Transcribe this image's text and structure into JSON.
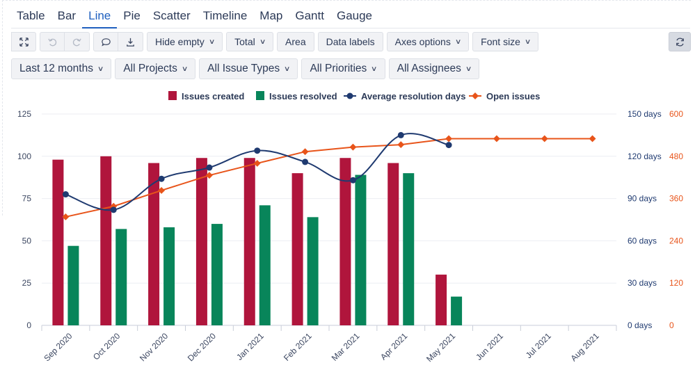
{
  "tabs": [
    "Table",
    "Bar",
    "Line",
    "Pie",
    "Scatter",
    "Timeline",
    "Map",
    "Gantt",
    "Gauge"
  ],
  "active_tab": "Line",
  "toolbar": {
    "icons": [
      "expand-icon",
      "undo-icon",
      "redo-icon",
      "comment-icon",
      "download-icon",
      "refresh-icon"
    ],
    "buttons": [
      {
        "label": "Hide empty",
        "dropdown": true
      },
      {
        "label": "Total",
        "dropdown": true
      },
      {
        "label": "Area",
        "dropdown": false
      },
      {
        "label": "Data labels",
        "dropdown": false
      },
      {
        "label": "Axes options",
        "dropdown": true
      },
      {
        "label": "Font size",
        "dropdown": true
      }
    ]
  },
  "filters": [
    "Last 12 months",
    "All Projects",
    "All Issue Types",
    "All Priorities",
    "All Assignees"
  ],
  "colors": {
    "created": "#b0153c",
    "resolved": "#08855a",
    "avg": "#1f3a70",
    "open": "#e8541a",
    "accent": "#1e5fbf"
  },
  "chart_data": {
    "type": "bar",
    "categories": [
      "Sep 2020",
      "Oct 2020",
      "Nov 2020",
      "Dec 2020",
      "Jan 2021",
      "Feb 2021",
      "Mar 2021",
      "Apr 2021",
      "May 2021",
      "Jun 2021",
      "Jul 2021",
      "Aug 2021"
    ],
    "legend": [
      "Issues created",
      "Issues resolved",
      "Average resolution days",
      "Open issues"
    ],
    "series": [
      {
        "name": "Issues created",
        "type": "bar",
        "axis": "left",
        "values": [
          98,
          100,
          96,
          99,
          99,
          90,
          99,
          96,
          30,
          null,
          null,
          null
        ]
      },
      {
        "name": "Issues resolved",
        "type": "bar",
        "axis": "left",
        "values": [
          47,
          57,
          58,
          60,
          71,
          64,
          89,
          90,
          17,
          null,
          null,
          null
        ]
      },
      {
        "name": "Average resolution days",
        "type": "line",
        "axis": "right1",
        "smooth": true,
        "values": [
          93,
          82,
          104,
          112,
          124,
          116,
          103,
          135,
          128,
          null,
          null,
          null
        ]
      },
      {
        "name": "Open issues",
        "type": "line",
        "axis": "right2",
        "values": [
          308,
          338,
          383,
          426,
          460,
          493,
          506,
          513,
          530,
          530,
          530,
          530
        ]
      }
    ],
    "y_left": {
      "ticks": [
        "0",
        "25",
        "50",
        "75",
        "100",
        "125"
      ],
      "range": [
        0,
        125
      ]
    },
    "y_right1": {
      "ticks": [
        "0 days",
        "30 days",
        "60 days",
        "90 days",
        "120 days",
        "150 days"
      ],
      "range": [
        0,
        150
      ]
    },
    "y_right2": {
      "ticks": [
        "0",
        "120",
        "240",
        "360",
        "480",
        "600"
      ],
      "range": [
        0,
        600
      ]
    },
    "grid": true,
    "legend_position": "top-center"
  }
}
